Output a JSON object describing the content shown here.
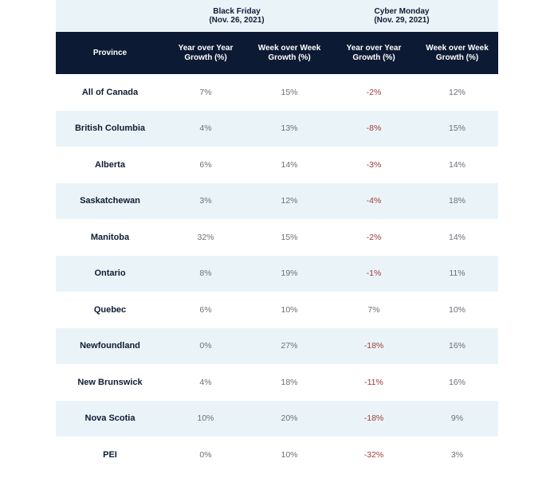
{
  "chart_data": {
    "type": "table",
    "column_groups": [
      {
        "label_line1": "Black Friday",
        "label_line2": "(Nov. 26, 2021)"
      },
      {
        "label_line1": "Cyber Monday",
        "label_line2": "(Nov. 29, 2021)"
      }
    ],
    "headers": [
      "Province",
      "Year over Year Growth (%)",
      "Week over Week Growth (%)",
      "Year over Year Growth (%)",
      "Week over Week Growth (%)"
    ],
    "rows": [
      [
        "All of Canada",
        "7%",
        "15%",
        "-2%",
        "12%"
      ],
      [
        "British Columbia",
        "4%",
        "13%",
        "-8%",
        "15%"
      ],
      [
        "Alberta",
        "6%",
        "14%",
        "-3%",
        "14%"
      ],
      [
        "Saskatchewan",
        "3%",
        "12%",
        "-4%",
        "18%"
      ],
      [
        "Manitoba",
        "32%",
        "15%",
        "-2%",
        "14%"
      ],
      [
        "Ontario",
        "8%",
        "19%",
        "-1%",
        "11%"
      ],
      [
        "Quebec",
        "6%",
        "10%",
        "7%",
        "10%"
      ],
      [
        "Newfoundland",
        "0%",
        "27%",
        "-18%",
        "16%"
      ],
      [
        "New Brunswick",
        "4%",
        "18%",
        "-11%",
        "16%"
      ],
      [
        "Nova Scotia",
        "10%",
        "20%",
        "-18%",
        "9%"
      ],
      [
        "PEI",
        "0%",
        "10%",
        "-32%",
        "3%"
      ]
    ]
  },
  "colors": {
    "header_bg": "#0d1a33",
    "shade_bg": "#eaf4f8",
    "negative": "#a23a3a",
    "value_text": "#6b6f78",
    "label_text": "#0f1c33"
  }
}
